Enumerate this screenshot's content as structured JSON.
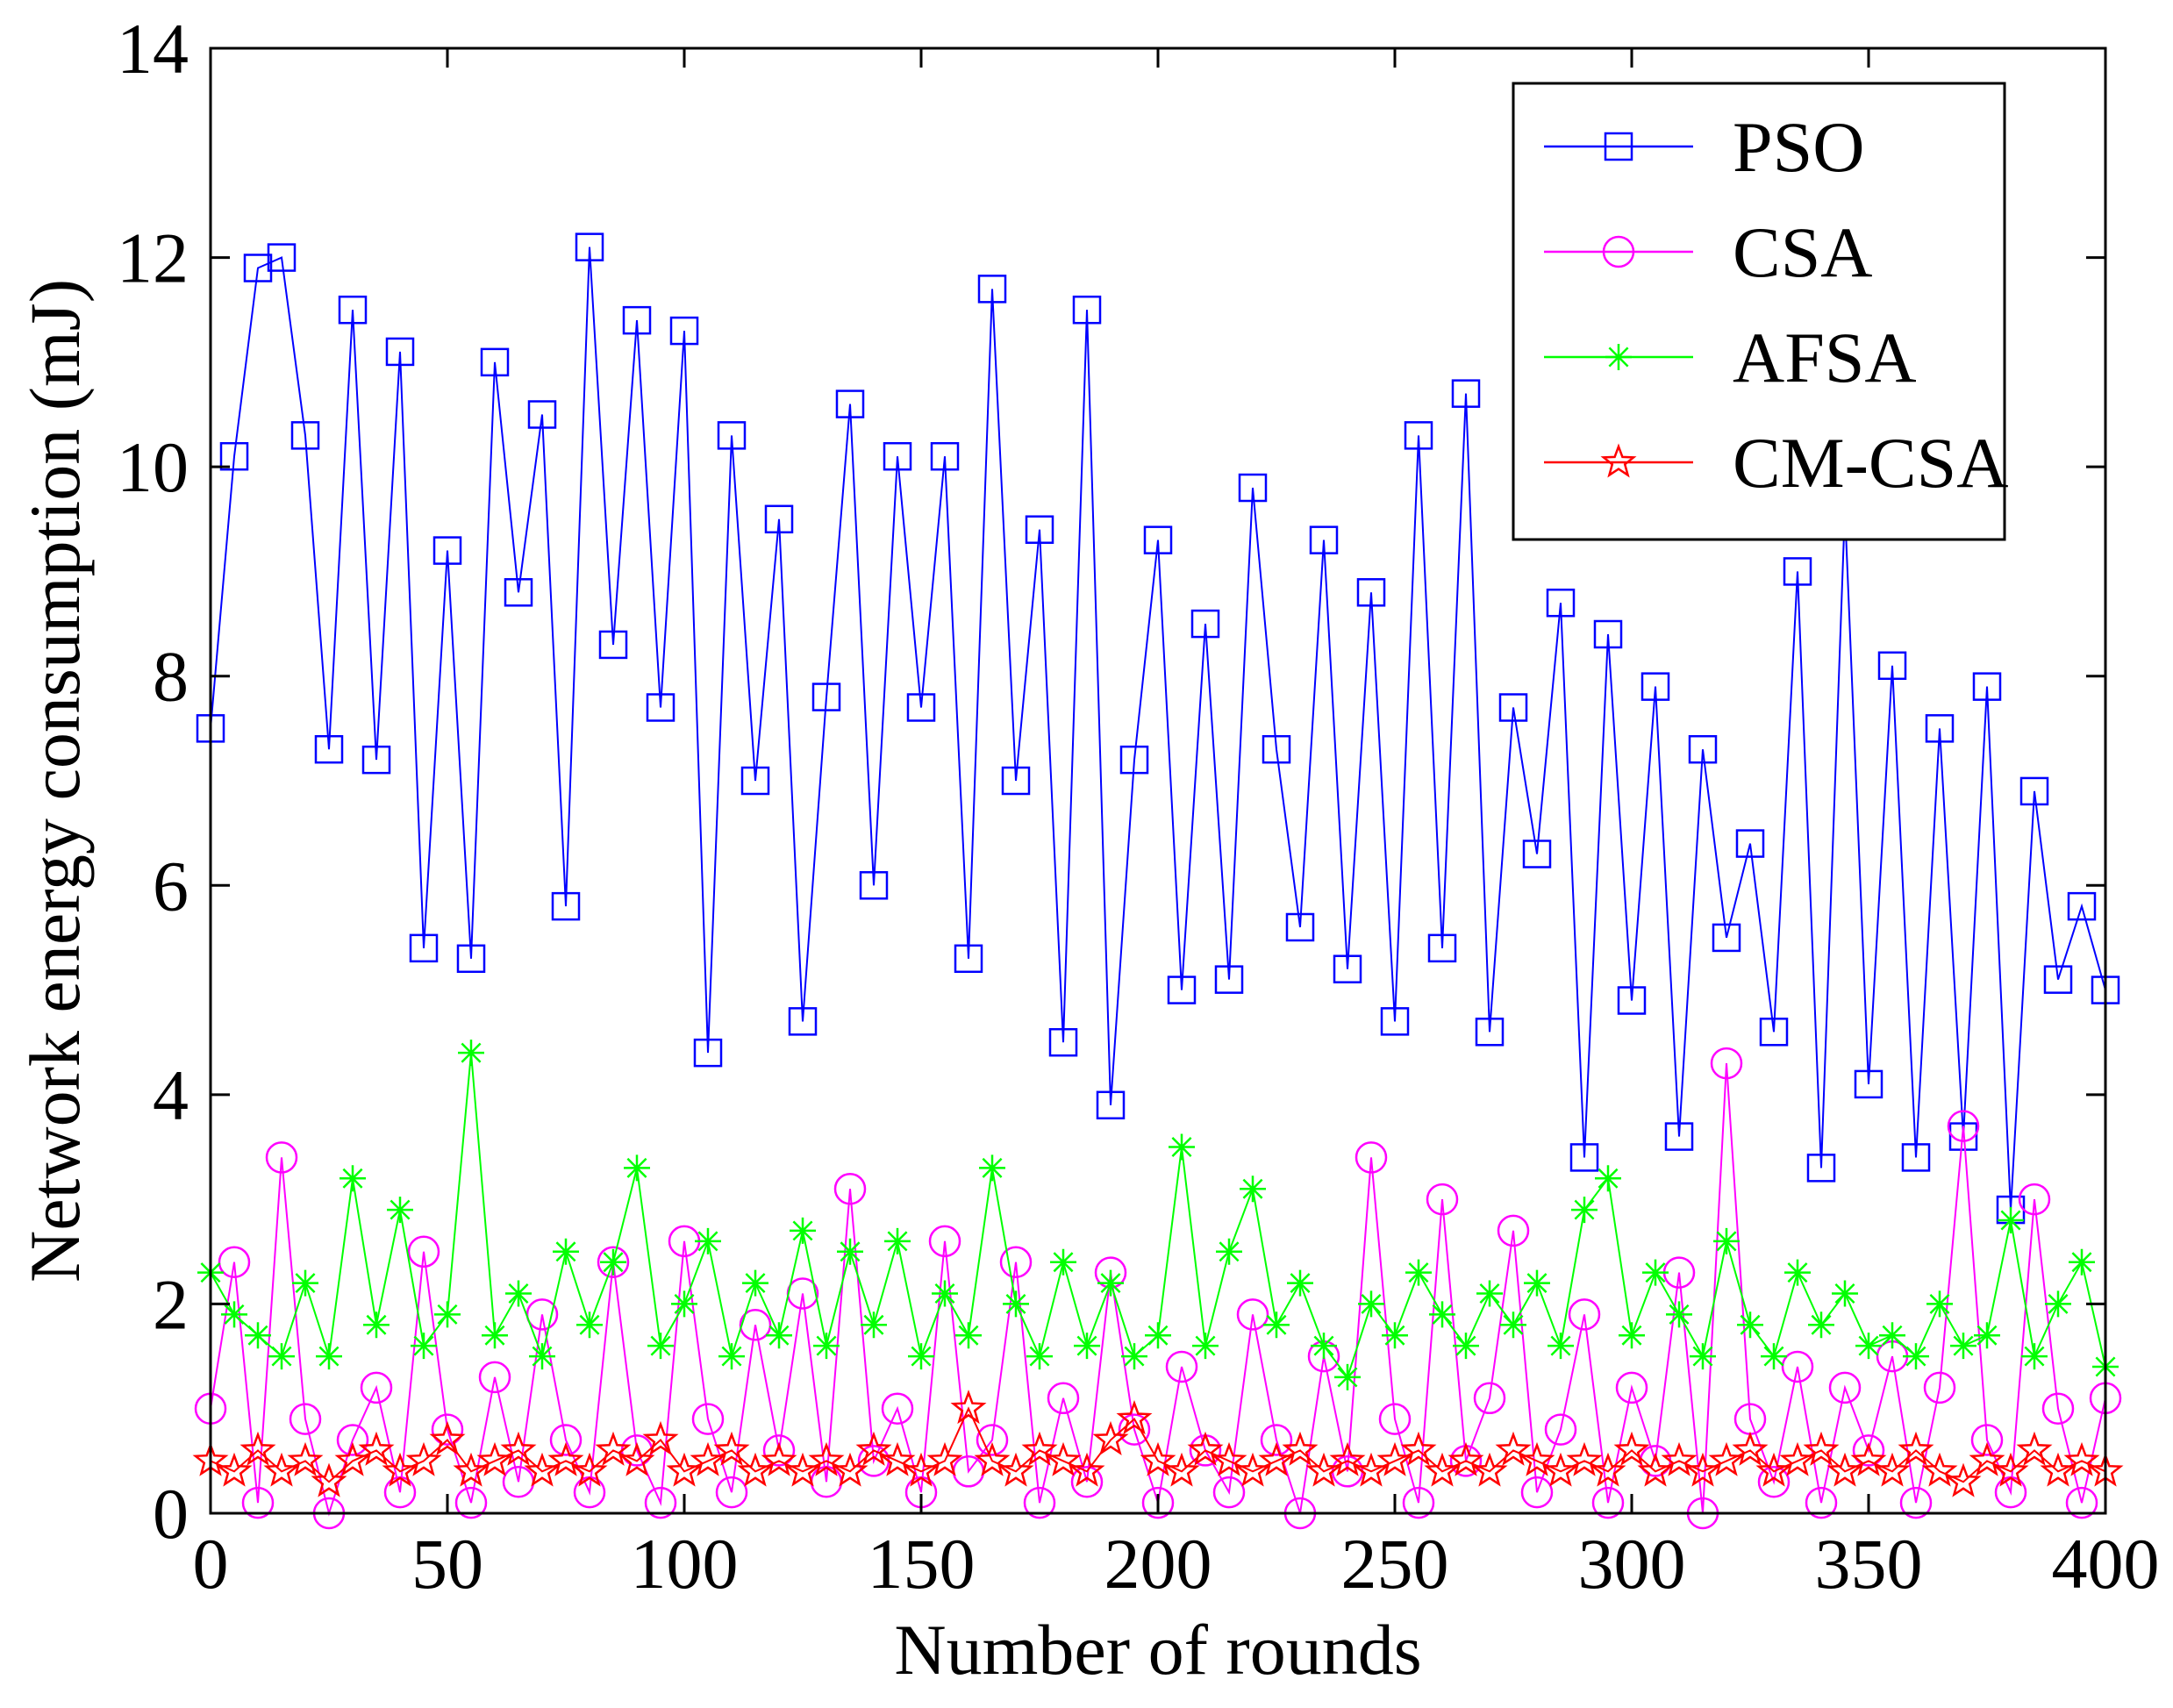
{
  "chart_data": {
    "type": "line",
    "title": "",
    "xlabel": "Number of rounds",
    "ylabel": "Network energy consumption (mJ)",
    "xlim": [
      0,
      400
    ],
    "ylim": [
      0,
      14
    ],
    "xticks": [
      0,
      50,
      100,
      150,
      200,
      250,
      300,
      350,
      400
    ],
    "yticks": [
      0,
      2,
      4,
      6,
      8,
      10,
      12,
      14
    ],
    "xtick_labels": [
      "0",
      "50",
      "100",
      "150",
      "200",
      "250",
      "300",
      "350",
      "400"
    ],
    "ytick_labels": [
      "0",
      "2",
      "4",
      "6",
      "8",
      "10",
      "12",
      "14"
    ],
    "grid": false,
    "legend_position": "top-right",
    "series": [
      {
        "name": "PSO",
        "color": "#0000ff",
        "marker": "square",
        "x": [
          0,
          5,
          10,
          15,
          20,
          25,
          30,
          35,
          40,
          45,
          50,
          55,
          60,
          65,
          70,
          75,
          80,
          85,
          90,
          95,
          100,
          105,
          110,
          115,
          120,
          125,
          130,
          135,
          140,
          145,
          150,
          155,
          160,
          165,
          170,
          175,
          180,
          185,
          190,
          195,
          200,
          205,
          210,
          215,
          220,
          225,
          230,
          235,
          240,
          245,
          250,
          255,
          260,
          265,
          270,
          275,
          280,
          285,
          290,
          295,
          300,
          305,
          310,
          315,
          320,
          325,
          330,
          335,
          340,
          345,
          350,
          355,
          360,
          365,
          370,
          375,
          380,
          385,
          390,
          395,
          400
        ],
        "values": [
          7.5,
          10.1,
          11.9,
          12.0,
          10.3,
          7.3,
          11.5,
          7.2,
          11.1,
          5.4,
          9.2,
          5.3,
          11.0,
          8.8,
          10.5,
          5.8,
          12.1,
          8.3,
          11.4,
          7.7,
          11.3,
          4.4,
          10.3,
          7.0,
          9.5,
          4.7,
          7.8,
          10.6,
          6.0,
          10.1,
          7.7,
          10.1,
          5.3,
          11.7,
          7.0,
          9.4,
          4.5,
          11.5,
          3.9,
          7.2,
          9.3,
          5.0,
          8.5,
          5.1,
          9.8,
          7.3,
          5.6,
          9.3,
          5.2,
          8.8,
          4.7,
          10.3,
          5.4,
          10.7,
          4.6,
          7.7,
          6.3,
          8.7,
          3.4,
          8.4,
          4.9,
          7.9,
          3.6,
          7.3,
          5.5,
          6.4,
          4.6,
          9.0,
          3.3,
          9.6,
          4.1,
          8.1,
          3.4,
          7.5,
          3.6,
          7.9,
          2.9,
          6.9,
          5.1,
          5.8,
          5.0
        ]
      },
      {
        "name": "CSA",
        "color": "#ff00ff",
        "marker": "circle",
        "x": [
          0,
          5,
          10,
          15,
          20,
          25,
          30,
          35,
          40,
          45,
          50,
          55,
          60,
          65,
          70,
          75,
          80,
          85,
          90,
          95,
          100,
          105,
          110,
          115,
          120,
          125,
          130,
          135,
          140,
          145,
          150,
          155,
          160,
          165,
          170,
          175,
          180,
          185,
          190,
          195,
          200,
          205,
          210,
          215,
          220,
          225,
          230,
          235,
          240,
          245,
          250,
          255,
          260,
          265,
          270,
          275,
          280,
          285,
          290,
          295,
          300,
          305,
          310,
          315,
          320,
          325,
          330,
          335,
          340,
          345,
          350,
          355,
          360,
          365,
          370,
          375,
          380,
          385,
          390,
          395,
          400
        ],
        "values": [
          1.0,
          2.4,
          0.1,
          3.4,
          0.9,
          0.0,
          0.7,
          1.2,
          0.2,
          2.5,
          0.8,
          0.1,
          1.3,
          0.3,
          1.9,
          0.7,
          0.2,
          2.4,
          0.6,
          0.1,
          2.6,
          0.9,
          0.2,
          1.8,
          0.6,
          2.1,
          0.3,
          3.1,
          0.5,
          1.0,
          0.2,
          2.6,
          0.4,
          0.7,
          2.4,
          0.1,
          1.1,
          0.3,
          2.3,
          0.8,
          0.1,
          1.4,
          0.6,
          0.2,
          1.9,
          0.7,
          0.0,
          1.5,
          0.4,
          3.4,
          0.9,
          0.1,
          3.0,
          0.5,
          1.1,
          2.7,
          0.2,
          0.8,
          1.9,
          0.1,
          1.2,
          0.5,
          2.3,
          0.0,
          4.3,
          0.9,
          0.3,
          1.4,
          0.1,
          1.2,
          0.6,
          1.5,
          0.1,
          1.2,
          3.7,
          0.7,
          0.2,
          3.0,
          1.0,
          0.1,
          1.1
        ]
      },
      {
        "name": "AFSA",
        "color": "#00ff00",
        "marker": "asterisk",
        "x": [
          0,
          5,
          10,
          15,
          20,
          25,
          30,
          35,
          40,
          45,
          50,
          55,
          60,
          65,
          70,
          75,
          80,
          85,
          90,
          95,
          100,
          105,
          110,
          115,
          120,
          125,
          130,
          135,
          140,
          145,
          150,
          155,
          160,
          165,
          170,
          175,
          180,
          185,
          190,
          195,
          200,
          205,
          210,
          215,
          220,
          225,
          230,
          235,
          240,
          245,
          250,
          255,
          260,
          265,
          270,
          275,
          280,
          285,
          290,
          295,
          300,
          305,
          310,
          315,
          320,
          325,
          330,
          335,
          340,
          345,
          350,
          355,
          360,
          365,
          370,
          375,
          380,
          385,
          390,
          395,
          400
        ],
        "values": [
          2.3,
          1.9,
          1.7,
          1.5,
          2.2,
          1.5,
          3.2,
          1.8,
          2.9,
          1.6,
          1.9,
          4.4,
          1.7,
          2.1,
          1.5,
          2.5,
          1.8,
          2.4,
          3.3,
          1.6,
          2.0,
          2.6,
          1.5,
          2.2,
          1.7,
          2.7,
          1.6,
          2.5,
          1.8,
          2.6,
          1.5,
          2.1,
          1.7,
          3.3,
          2.0,
          1.5,
          2.4,
          1.6,
          2.2,
          1.5,
          1.7,
          3.5,
          1.6,
          2.5,
          3.1,
          1.8,
          2.2,
          1.6,
          1.3,
          2.0,
          1.7,
          2.3,
          1.9,
          1.6,
          2.1,
          1.8,
          2.2,
          1.6,
          2.9,
          3.2,
          1.7,
          2.3,
          1.9,
          1.5,
          2.6,
          1.8,
          1.5,
          2.3,
          1.8,
          2.1,
          1.6,
          1.7,
          1.5,
          2.0,
          1.6,
          1.7,
          2.8,
          1.5,
          2.0,
          2.4,
          1.4
        ]
      },
      {
        "name": "CM-CSA",
        "color": "#ff0000",
        "marker": "star",
        "x": [
          0,
          5,
          10,
          15,
          20,
          25,
          30,
          35,
          40,
          45,
          50,
          55,
          60,
          65,
          70,
          75,
          80,
          85,
          90,
          95,
          100,
          105,
          110,
          115,
          120,
          125,
          130,
          135,
          140,
          145,
          150,
          155,
          160,
          165,
          170,
          175,
          180,
          185,
          190,
          195,
          200,
          205,
          210,
          215,
          220,
          225,
          230,
          235,
          240,
          245,
          250,
          255,
          260,
          265,
          270,
          275,
          280,
          285,
          290,
          295,
          300,
          305,
          310,
          315,
          320,
          325,
          330,
          335,
          340,
          345,
          350,
          355,
          360,
          365,
          370,
          375,
          380,
          385,
          390,
          395,
          400
        ],
        "values": [
          0.5,
          0.4,
          0.6,
          0.4,
          0.5,
          0.3,
          0.5,
          0.6,
          0.4,
          0.5,
          0.7,
          0.4,
          0.5,
          0.6,
          0.4,
          0.5,
          0.4,
          0.6,
          0.5,
          0.7,
          0.4,
          0.5,
          0.6,
          0.4,
          0.5,
          0.4,
          0.5,
          0.4,
          0.6,
          0.5,
          0.4,
          0.5,
          1.0,
          0.5,
          0.4,
          0.6,
          0.5,
          0.4,
          0.7,
          0.9,
          0.5,
          0.4,
          0.6,
          0.5,
          0.4,
          0.5,
          0.6,
          0.4,
          0.5,
          0.4,
          0.5,
          0.6,
          0.4,
          0.5,
          0.4,
          0.6,
          0.5,
          0.4,
          0.5,
          0.4,
          0.6,
          0.4,
          0.5,
          0.4,
          0.5,
          0.6,
          0.4,
          0.5,
          0.6,
          0.4,
          0.5,
          0.4,
          0.6,
          0.4,
          0.3,
          0.5,
          0.4,
          0.6,
          0.4,
          0.5,
          0.4
        ]
      }
    ]
  }
}
